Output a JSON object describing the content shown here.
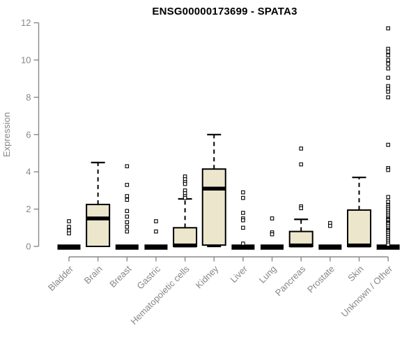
{
  "page": {
    "background": "#ffffff"
  },
  "chart_data": {
    "type": "boxplot",
    "title": "ENSG00000173699 - SPATA3",
    "ylabel": "Expression",
    "xlabel": "",
    "ylim": [
      0,
      12
    ],
    "yticks": [
      0,
      2,
      4,
      6,
      8,
      10,
      12
    ],
    "grid": false,
    "legend": null,
    "colors": {
      "box_fill": "#ece6cc",
      "box_border": "#000000",
      "median": "#000000",
      "axis": "#888888",
      "tick_label": "#878787",
      "title": "#000000",
      "outlier_fill": "#ffffff"
    },
    "categories": [
      "Bladder",
      "Brain",
      "Breast",
      "Gastric",
      "Hematopoietic cells",
      "Kidney",
      "Liver",
      "Lung",
      "Pancreas",
      "Prostate",
      "Skin",
      "Unknown / Other"
    ],
    "series": [
      {
        "name": "Bladder",
        "q1": 0,
        "median": 0,
        "q3": 0,
        "whisker_low": 0,
        "whisker_high": 0,
        "outliers": [
          1.35,
          1.05,
          0.85,
          0.7
        ]
      },
      {
        "name": "Brain",
        "q1": 0,
        "median": 1.5,
        "q3": 2.25,
        "whisker_low": 0,
        "whisker_high": 4.5,
        "outliers": []
      },
      {
        "name": "Breast",
        "q1": 0,
        "median": 0,
        "q3": 0,
        "whisker_low": 0,
        "whisker_high": 0,
        "outliers": [
          4.3,
          3.3,
          2.7,
          2.5,
          1.9,
          1.6,
          1.3,
          1.05,
          0.8
        ]
      },
      {
        "name": "Gastric",
        "q1": 0,
        "median": 0,
        "q3": 0,
        "whisker_low": 0,
        "whisker_high": 0,
        "outliers": [
          1.35,
          0.8
        ]
      },
      {
        "name": "Hematopoietic cells",
        "q1": 0,
        "median": 0.05,
        "q3": 1.0,
        "whisker_low": 0,
        "whisker_high": 2.55,
        "outliers": [
          3.75,
          3.6,
          3.45,
          3.35,
          3.0,
          2.85,
          2.7,
          2.6
        ]
      },
      {
        "name": "Kidney",
        "q1": 0.07,
        "median": 3.1,
        "q3": 4.15,
        "whisker_low": 0,
        "whisker_high": 6.0,
        "outliers": []
      },
      {
        "name": "Liver",
        "q1": 0,
        "median": 0,
        "q3": 0,
        "whisker_low": 0,
        "whisker_high": 0,
        "outliers": [
          2.9,
          2.6,
          1.8,
          1.5,
          1.4,
          1.0,
          0.15
        ]
      },
      {
        "name": "Lung",
        "q1": 0,
        "median": 0,
        "q3": 0,
        "whisker_low": 0,
        "whisker_high": 0,
        "outliers": [
          1.5,
          0.75,
          0.65
        ]
      },
      {
        "name": "Pancreas",
        "q1": 0,
        "median": 0.05,
        "q3": 0.8,
        "whisker_low": 0,
        "whisker_high": 1.45,
        "outliers": [
          5.25,
          4.4,
          2.15,
          2.05
        ]
      },
      {
        "name": "Prostate",
        "q1": 0,
        "median": 0,
        "q3": 0,
        "whisker_low": 0,
        "whisker_high": 0,
        "outliers": [
          1.25,
          1.1
        ]
      },
      {
        "name": "Skin",
        "q1": 0,
        "median": 0.05,
        "q3": 1.95,
        "whisker_low": 0,
        "whisker_high": 3.7,
        "outliers": []
      },
      {
        "name": "Unknown / Other",
        "q1": 0,
        "median": 0,
        "q3": 0,
        "whisker_low": 0,
        "whisker_high": 0,
        "outliers": [
          11.7,
          10.6,
          10.45,
          10.25,
          10.0,
          9.8,
          9.55,
          9.05,
          8.6,
          8.45,
          8.3,
          8.0,
          5.45,
          4.2,
          4.1,
          2.65,
          2.4,
          2.2,
          2.1,
          2.0,
          1.9,
          1.8,
          1.7,
          1.6,
          1.5,
          1.45,
          1.4,
          1.3,
          1.25,
          1.2,
          1.1,
          1.0,
          0.9,
          0.85,
          0.8,
          0.7,
          0.6,
          0.5,
          0.4,
          0.3,
          0.2,
          0.1
        ]
      }
    ]
  }
}
